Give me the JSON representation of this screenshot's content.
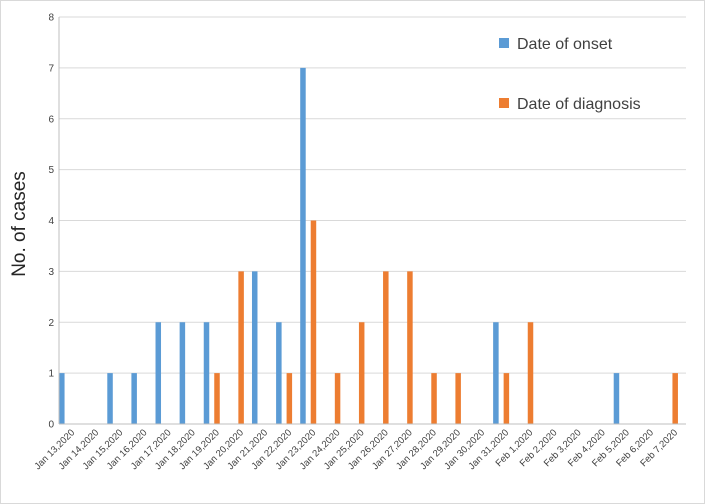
{
  "chart_data": {
    "type": "bar",
    "ylabel": "No.  of  cases",
    "xlabel": "",
    "ylim": [
      0,
      8
    ],
    "yticks": [
      0,
      1,
      2,
      3,
      4,
      5,
      6,
      7,
      8
    ],
    "grid": true,
    "legend_position": "top-right",
    "categories": [
      "Jan 13,2020",
      "Jan 14,2020",
      "Jan 15,2020",
      "Jan 16,2020",
      "Jan 17,2020",
      "Jan 18,2020",
      "Jan 19,2020",
      "Jan 20,2020",
      "Jan 21,2020",
      "Jan 22,2020",
      "Jan 23,2020",
      "Jan 24,2020",
      "Jan 25,2020",
      "Jan 26,2020",
      "Jan 27,2020",
      "Jan 28,2020",
      "Jan 29,2020",
      "Jan 30,2020",
      "Jan 31,2020",
      "Feb 1,2020",
      "Feb 2,2020",
      "Feb 3,2020",
      "Feb 4,2020",
      "Feb 5,2020",
      "Feb 6,2020",
      "Feb 7,2020"
    ],
    "series": [
      {
        "name": "Date of onset",
        "color": "#5b9bd5",
        "values": [
          1,
          0,
          1,
          1,
          2,
          2,
          2,
          0,
          3,
          2,
          7,
          0,
          0,
          0,
          0,
          0,
          0,
          0,
          2,
          0,
          0,
          0,
          0,
          1,
          0,
          0
        ]
      },
      {
        "name": "Date of diagnosis",
        "color": "#ed7d31",
        "values": [
          0,
          0,
          0,
          0,
          0,
          0,
          1,
          3,
          0,
          1,
          4,
          1,
          2,
          3,
          3,
          1,
          1,
          0,
          1,
          2,
          0,
          0,
          0,
          0,
          0,
          1
        ]
      }
    ]
  }
}
